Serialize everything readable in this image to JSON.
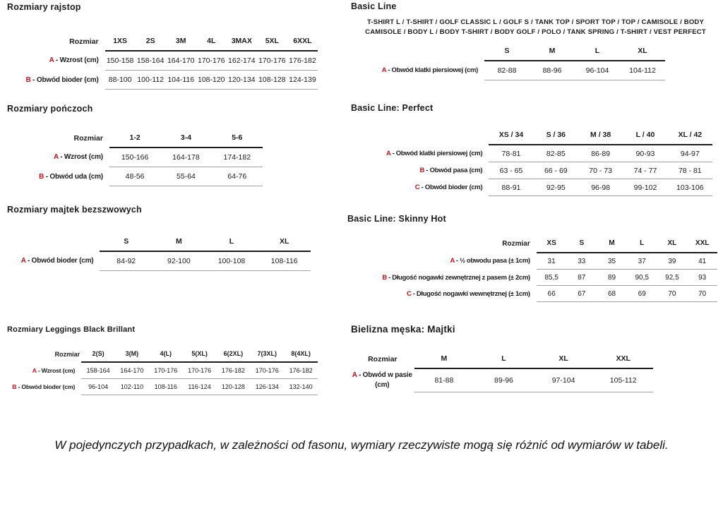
{
  "accent_red": "#c0101e",
  "rule_thick_color": "#1c1c1c",
  "rule_thin_color": "#a0a0a0",
  "sections": {
    "rajstopy": {
      "title": "Rozmiary rajstop",
      "corner_label": "Rozmiar",
      "columns": [
        "1XS",
        "2S",
        "3M",
        "4L",
        "3MAX",
        "5XL",
        "6XXL"
      ],
      "rows": [
        {
          "letter": "A",
          "label": "- Wzrost (cm)",
          "values": [
            "150-158",
            "158-164",
            "164-170",
            "170-176",
            "162-174",
            "170-176",
            "176-182"
          ]
        },
        {
          "letter": "B",
          "label": "- Obwód bioder (cm)",
          "values": [
            "88-100",
            "100-112",
            "104-116",
            "108-120",
            "120-134",
            "108-128",
            "124-139"
          ]
        }
      ]
    },
    "ponczochy": {
      "title": "Rozmiary pończoch",
      "corner_label": "Rozmiar",
      "columns": [
        "1-2",
        "3-4",
        "5-6"
      ],
      "rows": [
        {
          "letter": "A",
          "label": "- Wzrost (cm)",
          "values": [
            "150-166",
            "164-178",
            "174-182"
          ]
        },
        {
          "letter": "B",
          "label": "- Obwód uda (cm)",
          "values": [
            "48-56",
            "55-64",
            "64-76"
          ]
        }
      ]
    },
    "majtki_bezszwowe": {
      "title": "Rozmiary majtek bezszwowych",
      "corner_label": "",
      "columns": [
        "S",
        "M",
        "L",
        "XL"
      ],
      "rows": [
        {
          "letter": "A",
          "label": "- Obwód bioder (cm)",
          "values": [
            "84-92",
            "92-100",
            "100-108",
            "108-116"
          ]
        }
      ]
    },
    "leggings": {
      "title": "Rozmiary Leggings Black Brillant",
      "corner_label": "Rozmiar",
      "columns": [
        "2(S)",
        "3(M)",
        "4(L)",
        "5(XL)",
        "6(2XL)",
        "7(3XL)",
        "8(4XL)"
      ],
      "rows": [
        {
          "letter": "A",
          "label": "- Wzrost (cm)",
          "values": [
            "158-164",
            "164-170",
            "170-176",
            "170-176",
            "176-182",
            "170-176",
            "176-182"
          ]
        },
        {
          "letter": "B",
          "label": "- Obwód bioder (cm)",
          "values": [
            "96-104",
            "102-110",
            "108-116",
            "116-124",
            "120-128",
            "126-134",
            "132-140"
          ]
        }
      ]
    },
    "basic_line": {
      "title": "Basic Line",
      "products": "T-SHIRT L / T-SHIRT / GOLF CLASSIC L / GOLF S / TANK TOP / SPORT TOP / TOP / CAMISOLE / BODY CAMISOLE / BODY L / BODY T-SHIRT / BODY GOLF / POLO / TANK SPRING / T-SHIRT / VEST PERFECT",
      "corner_label": "",
      "columns": [
        "S",
        "M",
        "L",
        "XL"
      ],
      "rows": [
        {
          "letter": "A",
          "label": "- Obwód klatki piersiowej (cm)",
          "values": [
            "82-88",
            "88-96",
            "96-104",
            "104-112"
          ]
        }
      ]
    },
    "perfect": {
      "title": "Basic Line: Perfect",
      "corner_label": "",
      "columns": [
        "XS / 34",
        "S / 36",
        "M / 38",
        "L / 40",
        "XL / 42"
      ],
      "rows": [
        {
          "letter": "A",
          "label": "- Obwód klatki piersiowej (cm)",
          "values": [
            "78-81",
            "82-85",
            "86-89",
            "90-93",
            "94-97"
          ]
        },
        {
          "letter": "B",
          "label": "- Obwód pasa (cm)",
          "values": [
            "63 - 65",
            "66 - 69",
            "70 - 73",
            "74 - 77",
            "78 - 81"
          ]
        },
        {
          "letter": "C",
          "label": "- Obwód bioder (cm)",
          "values": [
            "88-91",
            "92-95",
            "96-98",
            "99-102",
            "103-106"
          ]
        }
      ]
    },
    "skinny_hot": {
      "title": "Basic Line: Skinny Hot",
      "corner_label": "Rozmiar",
      "columns": [
        "XS",
        "S",
        "M",
        "L",
        "XL",
        "XXL"
      ],
      "rows": [
        {
          "letter": "A",
          "label": "- ½ obwodu pasa (± 1cm)",
          "values": [
            "31",
            "33",
            "35",
            "37",
            "39",
            "41"
          ]
        },
        {
          "letter": "B",
          "label": "- Długość nogawki zewnętrznej z pasem (± 2cm)",
          "values": [
            "85,5",
            "87",
            "89",
            "90,5",
            "92,5",
            "93"
          ]
        },
        {
          "letter": "C",
          "label": "- Długość nogawki wewnętrznej (± 1cm)",
          "values": [
            "66",
            "67",
            "68",
            "69",
            "70",
            "70"
          ]
        }
      ]
    },
    "majtki_meskie": {
      "title": "Bielizna męska: Majtki",
      "corner_label": "Rozmiar",
      "columns": [
        "M",
        "L",
        "XL",
        "XXL"
      ],
      "rows": [
        {
          "letter": "A",
          "label": "- Obwód w pasie (cm)",
          "values": [
            "81-88",
            "89-96",
            "97-104",
            "105-112"
          ]
        }
      ]
    }
  },
  "footer": {
    "disclaimer": "W pojedynczych przypadkach, w zależności od fasonu, wymiary rzeczywiste mogą się różnić od wymiarów w tabeli."
  }
}
